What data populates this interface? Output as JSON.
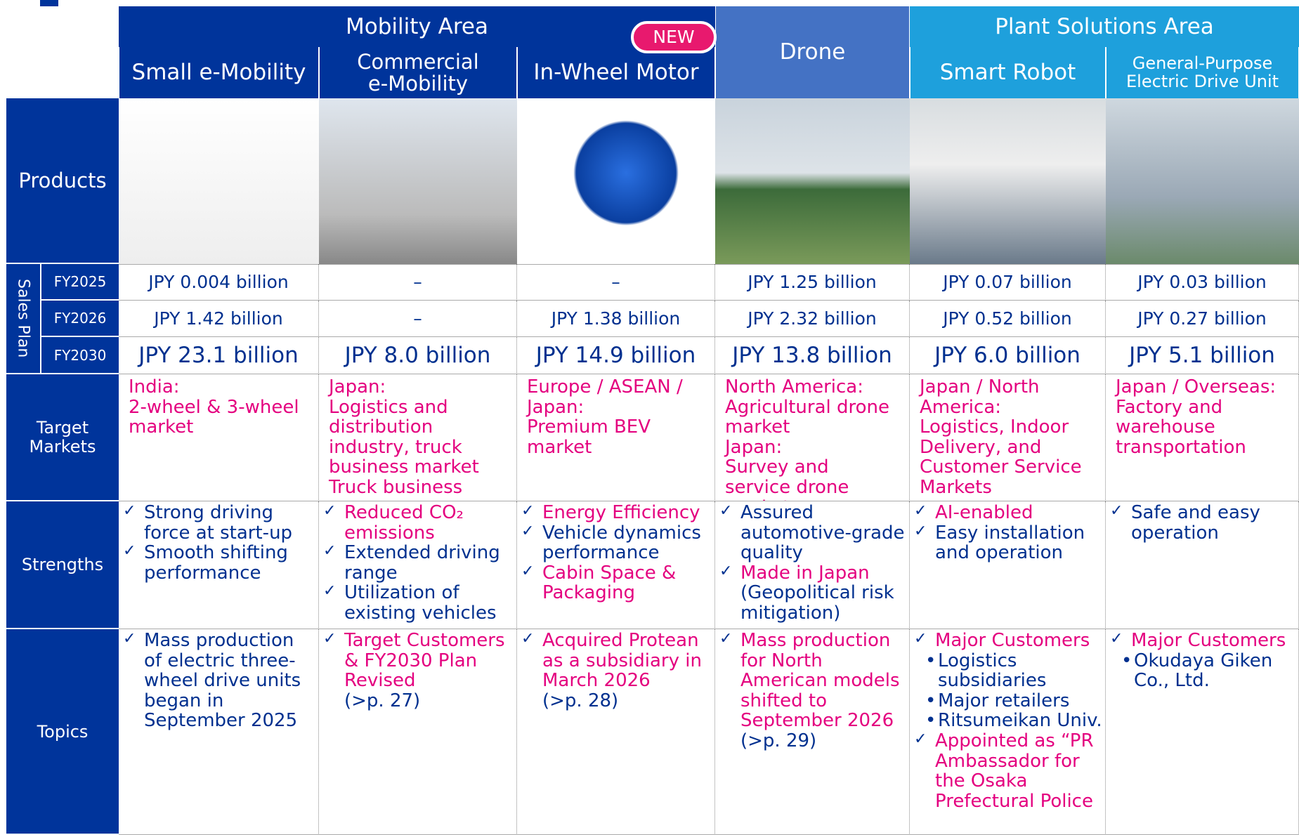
{
  "header": {
    "mobility_area": "Mobility Area",
    "new_badge": "NEW",
    "plant_area": "Plant Solutions Area"
  },
  "columns": [
    "Small e-Mobility",
    "Commercial\ne-Mobility",
    "In-Wheel Motor",
    "Drone",
    "Smart Robot",
    "General-Purpose\nElectric Drive Unit"
  ],
  "row_labels": {
    "products": "Products",
    "sales_plan": "Sales Plan",
    "target_markets": "Target\nMarkets",
    "strengths": "Strengths",
    "topics": "Topics"
  },
  "fiscal_years": [
    "FY2025",
    "FY2026",
    "FY2030"
  ],
  "sales": [
    [
      "JPY 0.004 billion",
      "–",
      "–",
      "JPY 1.25 billion",
      "JPY 0.07 billion",
      "JPY 0.03 billion"
    ],
    [
      "JPY 1.42 billion",
      "–",
      "JPY 1.38 billion",
      "JPY 2.32 billion",
      "JPY 0.52 billion",
      "JPY 0.27 billion"
    ],
    [
      "JPY 23.1 billion",
      "JPY 8.0 billion",
      "JPY 14.9 billion",
      "JPY 13.8 billion",
      "JPY 6.0 billion",
      "JPY 5.1 billion"
    ]
  ],
  "target_markets": [
    "India:\n2-wheel & 3-wheel market",
    "Japan:\nLogistics and distribution industry, truck business market\nTruck business",
    "Europe / ASEAN / Japan:\nPremium BEV market",
    "North America:\nAgricultural drone market\nJapan:\nSurvey and service drone market",
    "Japan / North America:\nLogistics, Indoor Delivery, and Customer Service Markets",
    "Japan / Overseas:\nFactory and warehouse transportation"
  ],
  "strengths": [
    [
      {
        "text": "Strong driving force at start-up"
      },
      {
        "text": "Smooth shifting performance"
      }
    ],
    [
      {
        "text": "Reduced CO₂ emissions",
        "color": "#e4007f"
      },
      {
        "text": "Extended driving range"
      },
      {
        "text": "Utilization of existing vehicles"
      }
    ],
    [
      {
        "text": "Energy Efficiency",
        "color": "#e4007f"
      },
      {
        "text": "Vehicle dynamics performance"
      },
      {
        "text": "Cabin Space & Packaging",
        "color": "#e4007f"
      }
    ],
    [
      {
        "text": " Assured automotive-grade quality"
      },
      {
        "text": "Made in Japan",
        "color": "#e4007f",
        "note": "(Geopolitical risk mitigation)"
      }
    ],
    [
      {
        "text": "AI-enabled",
        "color": "#e4007f"
      },
      {
        "text": "Easy installation and operation"
      }
    ],
    [
      {
        "text": "Safe and easy operation"
      }
    ]
  ],
  "topics": [
    [
      {
        "text": "Mass production of electric three-wheel drive units began in September 2025"
      }
    ],
    [
      {
        "text": "Target Customers & FY2030 Plan Revised",
        "color": "#e4007f",
        "note": "(>p. 27)"
      }
    ],
    [
      {
        "text": "Acquired Protean as a subsidiary in March 2026",
        "color": "#e4007f",
        "note": "(>p. 28)"
      }
    ],
    [
      {
        "text": "Mass production for North American models shifted to September 2026",
        "color": "#e4007f",
        "note": "(>p. 29)"
      }
    ],
    [
      {
        "text": "Major Customers",
        "color": "#e4007f",
        "sub": [
          "Logistics subsidiaries",
          "Major retailers",
          "Ritsumeikan Univ."
        ]
      },
      {
        "text": "Appointed as “PR Ambassador for the Osaka Prefectural Police",
        "color": "#e4007f"
      }
    ],
    [
      {
        "text": "Major Customers",
        "color": "#e4007f",
        "sub": [
          "Okudaya Giken Co., Ltd."
        ]
      }
    ]
  ]
}
